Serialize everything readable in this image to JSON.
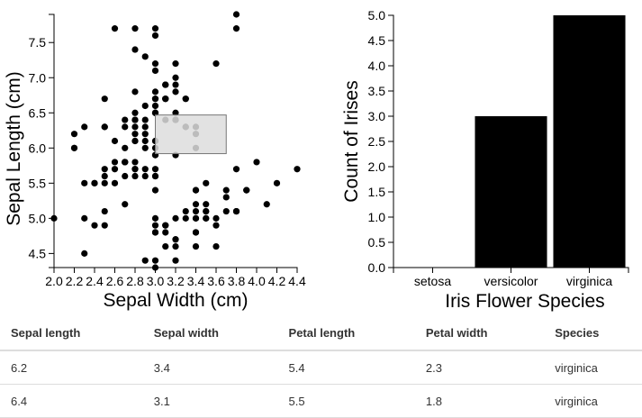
{
  "chart_data": [
    {
      "type": "scatter",
      "xlabel": "Sepal Width (cm)",
      "ylabel": "Sepal Length (cm)",
      "xlim": [
        2.0,
        4.4
      ],
      "ylim": [
        4.3,
        7.9
      ],
      "x_ticks": [
        "2.0",
        "2.2",
        "2.4",
        "2.6",
        "2.8",
        "3.0",
        "3.2",
        "3.4",
        "3.6",
        "3.8",
        "4.0",
        "4.2",
        "4.4"
      ],
      "y_ticks": [
        "4.5",
        "5.0",
        "5.5",
        "6.0",
        "6.5",
        "7.0",
        "7.5"
      ],
      "brush": {
        "x": [
          3.0,
          3.7
        ],
        "y": [
          5.92,
          6.47
        ]
      },
      "points": [
        [
          3.5,
          5.1
        ],
        [
          3.0,
          4.9
        ],
        [
          3.2,
          4.7
        ],
        [
          3.1,
          4.6
        ],
        [
          3.6,
          5.0
        ],
        [
          3.9,
          5.4
        ],
        [
          3.4,
          4.6
        ],
        [
          3.4,
          5.0
        ],
        [
          2.9,
          4.4
        ],
        [
          3.1,
          4.9
        ],
        [
          3.7,
          5.4
        ],
        [
          3.4,
          4.8
        ],
        [
          3.0,
          4.8
        ],
        [
          3.0,
          4.3
        ],
        [
          4.0,
          5.8
        ],
        [
          4.4,
          5.7
        ],
        [
          3.9,
          5.4
        ],
        [
          3.5,
          5.1
        ],
        [
          3.8,
          5.7
        ],
        [
          3.8,
          5.1
        ],
        [
          3.4,
          5.4
        ],
        [
          3.7,
          5.1
        ],
        [
          3.6,
          4.6
        ],
        [
          3.3,
          5.1
        ],
        [
          3.4,
          4.8
        ],
        [
          3.0,
          5.0
        ],
        [
          3.4,
          5.0
        ],
        [
          3.5,
          5.2
        ],
        [
          3.4,
          5.2
        ],
        [
          3.2,
          4.7
        ],
        [
          3.1,
          4.8
        ],
        [
          3.4,
          5.4
        ],
        [
          4.1,
          5.2
        ],
        [
          4.2,
          5.5
        ],
        [
          3.1,
          4.9
        ],
        [
          3.2,
          5.0
        ],
        [
          3.5,
          5.5
        ],
        [
          3.6,
          4.9
        ],
        [
          3.0,
          4.4
        ],
        [
          3.4,
          5.1
        ],
        [
          3.5,
          5.0
        ],
        [
          2.3,
          4.5
        ],
        [
          3.2,
          4.4
        ],
        [
          3.5,
          5.0
        ],
        [
          3.8,
          5.1
        ],
        [
          3.0,
          4.8
        ],
        [
          3.8,
          5.1
        ],
        [
          3.2,
          4.6
        ],
        [
          3.7,
          5.3
        ],
        [
          3.3,
          5.0
        ],
        [
          3.2,
          7.0
        ],
        [
          3.2,
          6.4
        ],
        [
          3.1,
          6.9
        ],
        [
          2.3,
          5.5
        ],
        [
          2.8,
          6.5
        ],
        [
          2.8,
          5.7
        ],
        [
          3.3,
          6.3
        ],
        [
          2.4,
          4.9
        ],
        [
          2.9,
          6.6
        ],
        [
          2.7,
          5.2
        ],
        [
          2.0,
          5.0
        ],
        [
          3.0,
          5.9
        ],
        [
          2.2,
          6.0
        ],
        [
          2.9,
          6.1
        ],
        [
          2.9,
          5.6
        ],
        [
          3.1,
          6.7
        ],
        [
          3.0,
          5.6
        ],
        [
          2.7,
          5.8
        ],
        [
          2.2,
          6.2
        ],
        [
          2.5,
          5.6
        ],
        [
          3.2,
          5.9
        ],
        [
          2.8,
          6.1
        ],
        [
          2.5,
          6.3
        ],
        [
          2.8,
          6.1
        ],
        [
          2.9,
          6.4
        ],
        [
          3.0,
          6.6
        ],
        [
          2.8,
          6.8
        ],
        [
          3.0,
          6.7
        ],
        [
          2.9,
          6.0
        ],
        [
          2.6,
          5.7
        ],
        [
          2.4,
          5.5
        ],
        [
          2.4,
          5.5
        ],
        [
          2.7,
          5.8
        ],
        [
          2.7,
          6.0
        ],
        [
          3.0,
          5.4
        ],
        [
          3.4,
          6.0
        ],
        [
          3.1,
          6.7
        ],
        [
          2.3,
          6.3
        ],
        [
          3.0,
          5.6
        ],
        [
          2.5,
          5.5
        ],
        [
          2.6,
          5.5
        ],
        [
          3.0,
          6.1
        ],
        [
          2.6,
          5.8
        ],
        [
          2.3,
          5.0
        ],
        [
          2.7,
          5.6
        ],
        [
          3.0,
          5.7
        ],
        [
          2.9,
          5.7
        ],
        [
          2.9,
          6.2
        ],
        [
          2.5,
          5.1
        ],
        [
          2.8,
          5.7
        ],
        [
          3.3,
          6.3
        ],
        [
          2.7,
          5.8
        ],
        [
          3.0,
          7.1
        ],
        [
          2.9,
          6.3
        ],
        [
          3.0,
          6.5
        ],
        [
          3.0,
          7.6
        ],
        [
          2.5,
          4.9
        ],
        [
          2.9,
          7.3
        ],
        [
          2.5,
          6.7
        ],
        [
          3.6,
          7.2
        ],
        [
          3.2,
          6.5
        ],
        [
          2.7,
          6.4
        ],
        [
          3.0,
          6.8
        ],
        [
          2.5,
          5.7
        ],
        [
          2.8,
          5.8
        ],
        [
          3.2,
          6.4
        ],
        [
          3.0,
          6.5
        ],
        [
          3.8,
          7.7
        ],
        [
          2.6,
          7.7
        ],
        [
          2.2,
          6.0
        ],
        [
          3.2,
          6.9
        ],
        [
          2.8,
          5.6
        ],
        [
          2.8,
          7.7
        ],
        [
          2.7,
          6.3
        ],
        [
          3.3,
          6.7
        ],
        [
          3.2,
          7.2
        ],
        [
          2.8,
          6.2
        ],
        [
          3.0,
          6.1
        ],
        [
          2.8,
          6.4
        ],
        [
          3.0,
          7.2
        ],
        [
          2.8,
          7.4
        ],
        [
          3.8,
          7.9
        ],
        [
          2.8,
          6.4
        ],
        [
          2.8,
          6.3
        ],
        [
          2.6,
          6.1
        ],
        [
          3.0,
          7.7
        ],
        [
          3.4,
          6.3
        ],
        [
          3.1,
          6.4
        ],
        [
          3.0,
          6.0
        ],
        [
          3.1,
          6.9
        ],
        [
          3.1,
          6.7
        ],
        [
          3.1,
          6.9
        ],
        [
          2.7,
          5.8
        ],
        [
          3.2,
          6.8
        ],
        [
          3.3,
          6.7
        ],
        [
          3.0,
          6.7
        ],
        [
          2.5,
          6.3
        ],
        [
          3.0,
          6.5
        ],
        [
          3.4,
          6.2
        ],
        [
          3.0,
          5.9
        ]
      ]
    },
    {
      "type": "bar",
      "xlabel": "Iris Flower Species",
      "ylabel": "Count of Irises",
      "categories": [
        "setosa",
        "versicolor",
        "virginica"
      ],
      "values": [
        0,
        3,
        5
      ],
      "ylim": [
        0,
        5
      ],
      "y_ticks": [
        "0.0",
        "0.5",
        "1.0",
        "1.5",
        "2.0",
        "2.5",
        "3.0",
        "3.5",
        "4.0",
        "4.5",
        "5.0"
      ]
    }
  ],
  "table": {
    "headers": [
      "Sepal length",
      "Sepal width",
      "Petal length",
      "Petal width",
      "Species"
    ],
    "rows": [
      [
        "6.2",
        "3.4",
        "5.4",
        "2.3",
        "virginica"
      ],
      [
        "6.4",
        "3.1",
        "5.5",
        "1.8",
        "virginica"
      ]
    ]
  }
}
